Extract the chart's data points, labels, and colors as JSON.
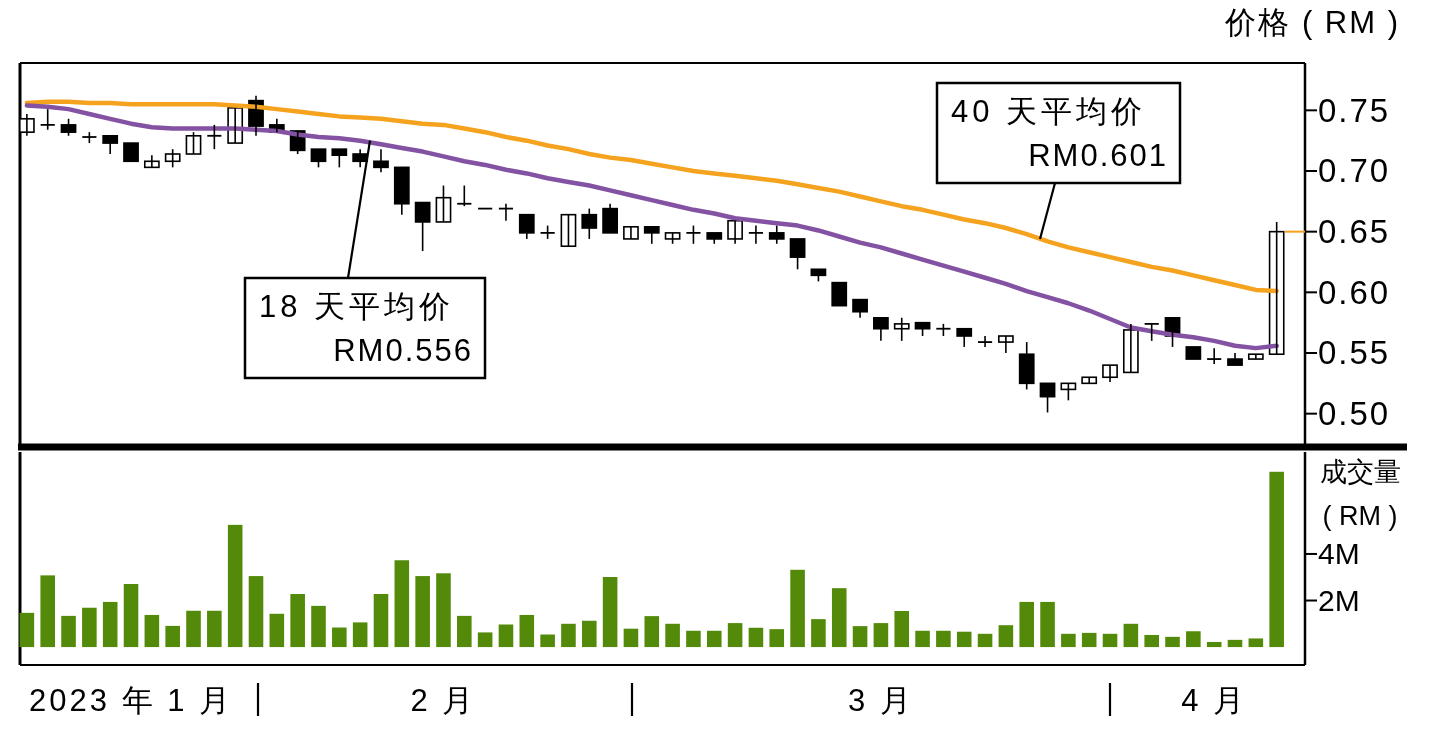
{
  "chart_data": [
    {
      "type": "candlestick",
      "ylabel": "价格 ( RM )",
      "tick_labels": "y",
      "ylim": [
        0.475,
        0.789
      ],
      "categories": [
        null,
        null,
        null,
        null,
        null,
        null,
        null,
        null,
        null,
        null,
        null,
        null,
        null,
        null,
        null,
        null,
        null,
        null,
        null,
        null,
        null,
        null,
        null,
        null,
        null,
        null,
        null,
        null,
        null,
        null,
        null,
        null,
        null,
        null,
        null,
        null,
        null,
        null,
        null,
        null,
        null,
        null,
        null,
        null,
        null,
        null,
        null,
        null,
        null,
        null,
        null,
        null,
        null,
        null,
        null,
        null,
        null,
        null,
        null,
        null,
        null
      ],
      "yticks": [
        {
          "value": 0.5,
          "label": "0.50"
        },
        {
          "value": 0.55,
          "label": "0.55"
        },
        {
          "value": 0.6,
          "label": "0.60"
        },
        {
          "value": 0.65,
          "label": "0.65"
        },
        {
          "value": 0.7,
          "label": "0.70"
        },
        {
          "value": 0.75,
          "label": "0.75"
        }
      ],
      "ohlc": [
        [
          0.732,
          0.747,
          0.729,
          0.743
        ],
        [
          0.738,
          0.751,
          0.734,
          0.738
        ],
        [
          0.738,
          0.743,
          0.729,
          0.732
        ],
        [
          0.728,
          0.732,
          0.723,
          0.728
        ],
        [
          0.729,
          0.729,
          0.714,
          0.723
        ],
        [
          0.723,
          0.723,
          0.708,
          0.708
        ],
        [
          0.703,
          0.713,
          0.703,
          0.708
        ],
        [
          0.708,
          0.718,
          0.703,
          0.714
        ],
        [
          0.714,
          0.732,
          0.714,
          0.729
        ],
        [
          0.729,
          0.738,
          0.718,
          0.729
        ],
        [
          0.723,
          0.752,
          0.723,
          0.752
        ],
        [
          0.758,
          0.762,
          0.729,
          0.737
        ],
        [
          0.738,
          0.743,
          0.732,
          0.732
        ],
        [
          0.733,
          0.733,
          0.714,
          0.717
        ],
        [
          0.718,
          0.718,
          0.703,
          0.708
        ],
        [
          0.718,
          0.718,
          0.703,
          0.713
        ],
        [
          0.714,
          0.718,
          0.703,
          0.708
        ],
        [
          0.708,
          0.718,
          0.699,
          0.703
        ],
        [
          0.703,
          0.703,
          0.664,
          0.673
        ],
        [
          0.674,
          0.674,
          0.634,
          0.658
        ],
        [
          0.658,
          0.688,
          0.658,
          0.678
        ],
        [
          0.673,
          0.688,
          0.671,
          0.673
        ],
        [
          0.669,
          0.669,
          0.669,
          0.669
        ],
        [
          0.669,
          0.673,
          0.659,
          0.669
        ],
        [
          0.664,
          0.664,
          0.644,
          0.649
        ],
        [
          0.649,
          0.655,
          0.644,
          0.649
        ],
        [
          0.638,
          0.664,
          0.638,
          0.664
        ],
        [
          0.664,
          0.669,
          0.644,
          0.653
        ],
        [
          0.669,
          0.673,
          0.649,
          0.649
        ],
        [
          0.644,
          0.654,
          0.644,
          0.654
        ],
        [
          0.654,
          0.654,
          0.64,
          0.649
        ],
        [
          0.644,
          0.649,
          0.64,
          0.649
        ],
        [
          0.649,
          0.655,
          0.64,
          0.649
        ],
        [
          0.649,
          0.649,
          0.64,
          0.644
        ],
        [
          0.644,
          0.659,
          0.64,
          0.659
        ],
        [
          0.649,
          0.655,
          0.64,
          0.649
        ],
        [
          0.649,
          0.655,
          0.64,
          0.644
        ],
        [
          0.644,
          0.644,
          0.619,
          0.629
        ],
        [
          0.619,
          0.619,
          0.609,
          0.614
        ],
        [
          0.608,
          0.608,
          0.589,
          0.589
        ],
        [
          0.594,
          0.594,
          0.579,
          0.584
        ],
        [
          0.579,
          0.579,
          0.56,
          0.57
        ],
        [
          0.57,
          0.579,
          0.56,
          0.574
        ],
        [
          0.575,
          0.575,
          0.564,
          0.57
        ],
        [
          0.57,
          0.574,
          0.564,
          0.57
        ],
        [
          0.57,
          0.57,
          0.555,
          0.564
        ],
        [
          0.559,
          0.564,
          0.555,
          0.559
        ],
        [
          0.559,
          0.564,
          0.55,
          0.564
        ],
        [
          0.549,
          0.559,
          0.52,
          0.525
        ],
        [
          0.525,
          0.525,
          0.501,
          0.514
        ],
        [
          0.52,
          0.525,
          0.511,
          0.525
        ],
        [
          0.525,
          0.53,
          0.525,
          0.53
        ],
        [
          0.53,
          0.54,
          0.526,
          0.54
        ],
        [
          0.534,
          0.574,
          0.534,
          0.569
        ],
        [
          0.574,
          0.574,
          0.56,
          0.574
        ],
        [
          0.579,
          0.579,
          0.555,
          0.564
        ],
        [
          0.555,
          0.555,
          0.545,
          0.545
        ],
        [
          0.545,
          0.554,
          0.541,
          0.545
        ],
        [
          0.545,
          0.55,
          0.54,
          0.54
        ],
        [
          0.545,
          0.549,
          0.545,
          0.549
        ],
        [
          0.549,
          0.658,
          0.549,
          0.65
        ]
      ],
      "series": [
        {
          "type": "line",
          "color": "#f5a21e",
          "values": [
            0.756,
            0.757,
            0.757,
            0.756,
            0.756,
            0.755,
            0.755,
            0.755,
            0.755,
            0.755,
            0.754,
            0.753,
            0.751,
            0.749,
            0.747,
            0.745,
            0.744,
            0.743,
            0.741,
            0.739,
            0.738,
            0.735,
            0.732,
            0.728,
            0.725,
            0.721,
            0.718,
            0.714,
            0.711,
            0.709,
            0.706,
            0.703,
            0.7,
            0.698,
            0.696,
            0.694,
            0.692,
            0.689,
            0.686,
            0.683,
            0.679,
            0.675,
            0.671,
            0.668,
            0.664,
            0.66,
            0.657,
            0.653,
            0.648,
            0.642,
            0.637,
            0.633,
            0.629,
            0.625,
            0.621,
            0.618,
            0.614,
            0.61,
            0.606,
            0.602,
            0.601
          ]
        },
        {
          "type": "line",
          "color": "#8352a3",
          "values": [
            0.754,
            0.753,
            0.751,
            0.747,
            0.743,
            0.739,
            0.736,
            0.735,
            0.735,
            0.735,
            0.735,
            0.734,
            0.733,
            0.73,
            0.728,
            0.727,
            0.725,
            0.722,
            0.719,
            0.716,
            0.712,
            0.708,
            0.705,
            0.701,
            0.698,
            0.694,
            0.691,
            0.688,
            0.684,
            0.68,
            0.676,
            0.672,
            0.668,
            0.665,
            0.661,
            0.659,
            0.657,
            0.655,
            0.651,
            0.646,
            0.641,
            0.637,
            0.632,
            0.627,
            0.622,
            0.617,
            0.612,
            0.607,
            0.601,
            0.596,
            0.591,
            0.585,
            0.578,
            0.571,
            0.568,
            0.565,
            0.563,
            0.56,
            0.556,
            0.554,
            0.556
          ]
        }
      ],
      "annotations": [
        {
          "text": "18 天平均价 RM0.556",
          "y": 0.725
        },
        {
          "text": "40 天平均价 RM0.601",
          "y": 0.644
        }
      ]
    },
    {
      "type": "bar",
      "ylabel": "成交量 ( RM )",
      "color": "#548a0a",
      "ylim": [
        -0.77,
        8.38
      ],
      "yticks": [
        {
          "value": 2,
          "label": "2M"
        },
        {
          "value": 4,
          "label": "4M"
        }
      ],
      "categories": [
        null,
        null,
        null,
        null,
        null,
        "2023 年 1 月",
        null,
        null,
        null,
        null,
        null,
        null,
        null,
        null,
        null,
        null,
        null,
        null,
        null,
        null,
        "2 月",
        null,
        null,
        null,
        null,
        null,
        null,
        null,
        null,
        null,
        null,
        null,
        null,
        null,
        null,
        null,
        null,
        null,
        null,
        null,
        null,
        "3 月",
        null,
        null,
        null,
        null,
        null,
        null,
        null,
        null,
        null,
        null,
        null,
        null,
        null,
        null,
        null,
        "4 月",
        null,
        null,
        null
      ],
      "values": [
        1.47,
        3.08,
        1.34,
        1.69,
        1.94,
        2.71,
        1.38,
        0.91,
        1.56,
        1.56,
        5.25,
        3.05,
        1.43,
        2.28,
        1.77,
        0.84,
        1.06,
        2.28,
        3.73,
        3.05,
        3.17,
        1.34,
        0.63,
        0.97,
        1.38,
        0.54,
        1.0,
        1.13,
        3.01,
        0.79,
        1.33,
        1.0,
        0.7,
        0.7,
        1.03,
        0.83,
        0.77,
        3.32,
        1.2,
        2.53,
        0.9,
        1.03,
        1.55,
        0.7,
        0.7,
        0.66,
        0.57,
        0.94,
        1.94,
        1.94,
        0.57,
        0.61,
        0.57,
        1.0,
        0.52,
        0.44,
        0.68,
        0.22,
        0.31,
        0.37,
        7.53
      ]
    }
  ]
}
